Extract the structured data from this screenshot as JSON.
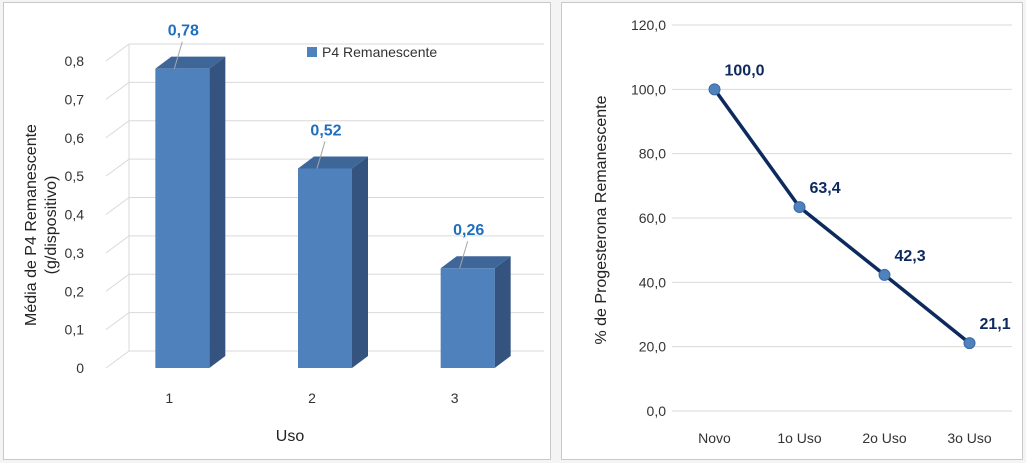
{
  "chart_data": [
    {
      "type": "bar",
      "categories": [
        "1",
        "2",
        "3"
      ],
      "series": [
        {
          "name": "P4 Remanescente",
          "values": [
            0.78,
            0.52,
            0.26
          ],
          "data_labels": [
            "0,78",
            "0,52",
            "0,26"
          ]
        }
      ],
      "xlabel": "Uso",
      "ylabel_lines": [
        "Média de P4 Remanescente",
        "(g/dispositivo)"
      ],
      "yticks": [
        "0",
        "0,1",
        "0,2",
        "0,3",
        "0,4",
        "0,5",
        "0,6",
        "0,7",
        "0,8"
      ],
      "ylim": [
        0,
        0.8
      ],
      "legend": "top-right",
      "grid": true,
      "style": "3d",
      "colors": {
        "bar_front": "#4f81bd",
        "bar_side": "#34547f",
        "bar_top": "#3e6699",
        "label": "#1f6fc0"
      }
    },
    {
      "type": "line",
      "categories": [
        "Novo",
        "1o Uso",
        "2o Uso",
        "3o Uso"
      ],
      "series": [
        {
          "values": [
            100.0,
            63.4,
            42.3,
            21.1
          ],
          "data_labels": [
            "100,0",
            "63,4",
            "42,3",
            "21,1"
          ]
        }
      ],
      "ylabel": "% de Progesterona Remanescente",
      "yticks": [
        "0,0",
        "20,0",
        "40,0",
        "60,0",
        "80,0",
        "100,0",
        "120,0"
      ],
      "ylim": [
        0,
        120
      ],
      "grid": true,
      "legend": "none",
      "colors": {
        "line": "#0d2a5f",
        "marker": "#4f81bd",
        "label": "#0d2a5f"
      }
    }
  ]
}
